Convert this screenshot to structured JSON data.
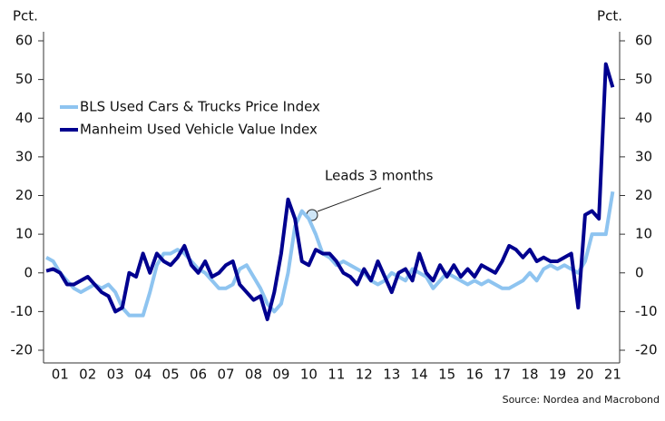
{
  "chart_data": {
    "type": "line",
    "x_unit_note_free": null,
    "x": [
      1.0,
      1.25,
      1.5,
      1.75,
      2.0,
      2.25,
      2.5,
      2.75,
      3.0,
      3.25,
      3.5,
      3.75,
      4.0,
      4.25,
      4.5,
      4.75,
      5.0,
      5.25,
      5.5,
      5.75,
      6.0,
      6.25,
      6.5,
      6.75,
      7.0,
      7.25,
      7.5,
      7.75,
      8.0,
      8.25,
      8.5,
      8.75,
      9.0,
      9.25,
      9.5,
      9.75,
      10.0,
      10.25,
      10.5,
      10.75,
      11.0,
      11.25,
      11.5,
      11.75,
      12.0,
      12.25,
      12.5,
      12.75,
      13.0,
      13.25,
      13.5,
      13.75,
      14.0,
      14.25,
      14.5,
      14.75,
      15.0,
      15.25,
      15.5,
      15.75,
      16.0,
      16.25,
      16.5,
      16.75,
      17.0,
      17.25,
      17.5,
      17.75,
      18.0,
      18.25,
      18.5,
      18.75,
      19.0,
      19.25,
      19.5,
      19.75,
      20.0,
      20.25,
      20.5,
      20.75,
      21.0,
      21.25,
      21.5
    ],
    "series": [
      {
        "name": "BLS Used Cars & Trucks Price Index",
        "color": "#8ec4f0",
        "values": [
          4,
          3,
          0,
          -2,
          -4,
          -5,
          -4,
          -3,
          -4,
          -3,
          -5,
          -9,
          -11,
          -11,
          -11,
          -5,
          2,
          5,
          5,
          6,
          5,
          3,
          1,
          0,
          -2,
          -4,
          -4,
          -3,
          1,
          2,
          -1,
          -4,
          -8,
          -10,
          -8,
          0,
          12,
          16,
          14,
          10,
          5,
          4,
          2,
          3,
          2,
          1,
          0,
          -2,
          -3,
          -2,
          0,
          -1,
          -2,
          1,
          0,
          -1,
          -4,
          -2,
          0,
          -1,
          -2,
          -3,
          -2,
          -3,
          -2,
          -3,
          -4,
          -4,
          -3,
          -2,
          0,
          -2,
          1,
          2,
          1,
          2,
          1,
          0,
          3,
          10,
          10,
          10,
          21
        ]
      },
      {
        "name": "Manheim Used Vehicle Value Index",
        "color": "#00008f",
        "values": [
          0.5,
          1,
          0,
          -3,
          -3,
          -2,
          -1,
          -3,
          -5,
          -6,
          -10,
          -9,
          0,
          -1,
          5,
          0,
          5,
          3,
          2,
          4,
          7,
          2,
          0,
          3,
          -1,
          0,
          2,
          3,
          -3,
          -5,
          -7,
          -6,
          -12,
          -5,
          5,
          19,
          14,
          3,
          2,
          6,
          5,
          5,
          3,
          0,
          -1,
          -3,
          1,
          -2,
          3,
          -1,
          -5,
          0,
          1,
          -2,
          5,
          0,
          -2,
          2,
          -1,
          2,
          -1,
          1,
          -1,
          2,
          1,
          0,
          3,
          7,
          6,
          4,
          6,
          3,
          4,
          3,
          3,
          4,
          5,
          -9,
          15,
          16,
          14,
          54,
          48
        ]
      }
    ],
    "xlim": [
      0.9,
      21.75
    ],
    "xticks": [
      {
        "value": 1.5,
        "label": "01"
      },
      {
        "value": 2.5,
        "label": "02"
      },
      {
        "value": 3.5,
        "label": "03"
      },
      {
        "value": 4.5,
        "label": "04"
      },
      {
        "value": 5.5,
        "label": "05"
      },
      {
        "value": 6.5,
        "label": "06"
      },
      {
        "value": 7.5,
        "label": "07"
      },
      {
        "value": 8.5,
        "label": "08"
      },
      {
        "value": 9.5,
        "label": "09"
      },
      {
        "value": 10.5,
        "label": "10"
      },
      {
        "value": 11.5,
        "label": "11"
      },
      {
        "value": 12.5,
        "label": "12"
      },
      {
        "value": 13.5,
        "label": "13"
      },
      {
        "value": 14.5,
        "label": "14"
      },
      {
        "value": 15.5,
        "label": "15"
      },
      {
        "value": 16.5,
        "label": "16"
      },
      {
        "value": 17.5,
        "label": "17"
      },
      {
        "value": 18.5,
        "label": "18"
      },
      {
        "value": 19.5,
        "label": "19"
      },
      {
        "value": 20.5,
        "label": "20"
      },
      {
        "value": 21.5,
        "label": "21"
      }
    ],
    "ylim": [
      -20,
      60
    ],
    "yticks": [
      -20,
      -10,
      0,
      10,
      20,
      30,
      40,
      50,
      60
    ],
    "y2lim": [
      -20,
      60
    ],
    "y2ticks": [
      -20,
      -10,
      0,
      10,
      20,
      30,
      40,
      50,
      60
    ],
    "y_label": "Pct.",
    "y2_label": "Pct.",
    "annotation": "Leads 3 months",
    "source": "Source: Nordea and Macrobond",
    "legend": "top-left"
  }
}
